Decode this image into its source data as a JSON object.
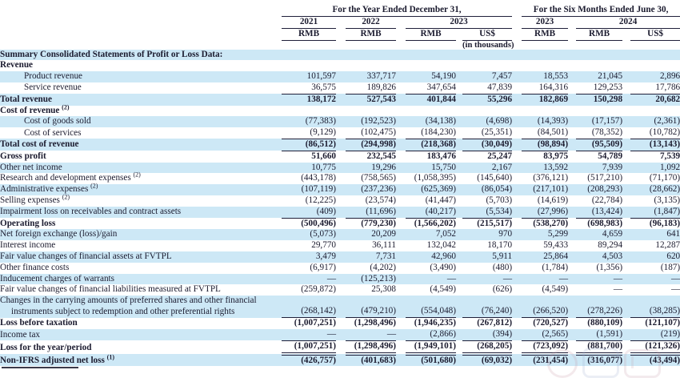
{
  "colors": {
    "band": "#cde8f6",
    "text": "#1b1b2f",
    "rule": "#20203a"
  },
  "table": {
    "header": {
      "group_year": "For the Year Ended December 31,",
      "group_six_months": "For the Six Months Ended June 30,",
      "year_cols": [
        "2021",
        "2022",
        "2023"
      ],
      "six_month_cols": [
        "2023",
        "2024"
      ],
      "currencies": [
        "RMB",
        "RMB",
        "RMB",
        "US$",
        "RMB",
        "RMB",
        "US$"
      ],
      "unit_note": "(in thousands)"
    },
    "rows": [
      {
        "label": "Summary Consolidated Statements of Profit or Loss Data:",
        "bold": true
      },
      {
        "label": "Revenue",
        "bold": true
      },
      {
        "label": "Product revenue",
        "indent": true,
        "values": [
          "101,597",
          "337,717",
          "54,190",
          "7,457",
          "18,553",
          "21,045",
          "2,896"
        ]
      },
      {
        "label": "Service revenue",
        "indent": true,
        "underline": "single",
        "values": [
          "36,575",
          "189,826",
          "347,654",
          "47,839",
          "164,316",
          "129,253",
          "17,786"
        ]
      },
      {
        "label": "Total revenue",
        "bold": true,
        "values": [
          "138,172",
          "527,543",
          "401,844",
          "55,296",
          "182,869",
          "150,298",
          "20,682"
        ]
      },
      {
        "label": "Cost of revenue",
        "sup": "(2)",
        "bold": true
      },
      {
        "label": "Cost of goods sold",
        "indent": true,
        "values": [
          "(77,383)",
          "(192,523)",
          "(34,138)",
          "(4,698)",
          "(14,393)",
          "(17,157)",
          "(2,361)"
        ]
      },
      {
        "label": "Cost of services",
        "indent": true,
        "underline": "single",
        "values": [
          "(9,129)",
          "(102,475)",
          "(184,230)",
          "(25,351)",
          "(84,501)",
          "(78,352)",
          "(10,782)"
        ]
      },
      {
        "label": "Total cost of revenue",
        "bold": true,
        "underline": "single",
        "values": [
          "(86,512)",
          "(294,998)",
          "(218,368)",
          "(30,049)",
          "(98,894)",
          "(95,509)",
          "(13,143)"
        ]
      },
      {
        "label": "Gross profit",
        "bold": true,
        "values": [
          "51,660",
          "232,545",
          "183,476",
          "25,247",
          "83,975",
          "54,789",
          "7,539"
        ]
      },
      {
        "label": "Other net income",
        "values": [
          "10,775",
          "19,296",
          "15,750",
          "2,167",
          "13,592",
          "7,939",
          "1,092"
        ]
      },
      {
        "label": "Research and development expenses",
        "sup": "(2)",
        "values": [
          "(443,178)",
          "(758,565)",
          "(1,058,395)",
          "(145,640)",
          "(376,121)",
          "(517,210)",
          "(71,170)"
        ]
      },
      {
        "label": "Administrative expenses",
        "sup": "(2)",
        "values": [
          "(107,119)",
          "(237,236)",
          "(625,369)",
          "(86,054)",
          "(217,101)",
          "(208,293)",
          "(28,662)"
        ]
      },
      {
        "label": "Selling expenses",
        "sup": "(2)",
        "values": [
          "(12,225)",
          "(23,574)",
          "(41,447)",
          "(5,703)",
          "(14,619)",
          "(22,784)",
          "(3,135)"
        ]
      },
      {
        "label": "Impairment loss on receivables and contract assets",
        "underline": "single",
        "values": [
          "(409)",
          "(11,696)",
          "(40,217)",
          "(5,534)",
          "(27,996)",
          "(13,424)",
          "(1,847)"
        ]
      },
      {
        "label": "Operating loss",
        "bold": true,
        "values": [
          "(500,496)",
          "(779,230)",
          "(1,566,202)",
          "(215,517)",
          "(538,270)",
          "(698,983)",
          "(96,183)"
        ]
      },
      {
        "label": "Net foreign exchange (loss)/gain",
        "values": [
          "(5,073)",
          "20,209",
          "7,052",
          "970",
          "5,299",
          "4,659",
          "641"
        ]
      },
      {
        "label": "Interest income",
        "values": [
          "29,770",
          "36,111",
          "132,042",
          "18,170",
          "59,433",
          "89,294",
          "12,287"
        ]
      },
      {
        "label": "Fair value changes of financial assets at FVTPL",
        "values": [
          "3,479",
          "7,731",
          "42,960",
          "5,911",
          "25,864",
          "4,503",
          "620"
        ]
      },
      {
        "label": "Other finance costs",
        "values": [
          "(6,917)",
          "(4,202)",
          "(3,490)",
          "(480)",
          "(1,784)",
          "(1,356)",
          "(187)"
        ]
      },
      {
        "label": "Inducement charges of warrants",
        "values": [
          "—",
          "(125,213)",
          "—",
          "—",
          "—",
          "—",
          "—"
        ]
      },
      {
        "label": "Fair value changes of financial liabilities measured at FVTPL",
        "values": [
          "(259,872)",
          "25,308",
          "(4,549)",
          "(626)",
          "(4,549)",
          "—",
          "—"
        ]
      },
      {
        "label": "Changes in the carrying amounts of preferred shares and other financial",
        "label2": "instruments subject to redemption and other preferential rights",
        "underline": "single",
        "values": [
          "(268,142)",
          "(479,210)",
          "(554,048)",
          "(76,240)",
          "(266,520)",
          "(278,226)",
          "(38,285)"
        ]
      },
      {
        "label": "Loss before taxation",
        "bold": true,
        "values": [
          "(1,007,251)",
          "(1,298,496)",
          "(1,946,235)",
          "(267,812)",
          "(720,527)",
          "(880,109)",
          "(121,107)"
        ]
      },
      {
        "label": "Income tax",
        "underline": "single",
        "values": [
          "—",
          "—",
          "(2,866)",
          "(394)",
          "(2,565)",
          "(1,591)",
          "(219)"
        ]
      },
      {
        "label": "Loss for the year/period",
        "bold": true,
        "underline": "double",
        "values": [
          "(1,007,251)",
          "(1,298,496)",
          "(1,949,101)",
          "(268,205)",
          "(723,092)",
          "(881,700)",
          "(121,326)"
        ]
      },
      {
        "label": "Non-IFRS adjusted net loss",
        "sup": "(1)",
        "bold": true,
        "values": [
          "(426,757)",
          "(401,683)",
          "(501,680)",
          "(69,032)",
          "(231,454)",
          "(316,077)",
          "(43,494)"
        ]
      }
    ]
  },
  "watermark": {
    "name": "faint-site-logo-watermark"
  }
}
